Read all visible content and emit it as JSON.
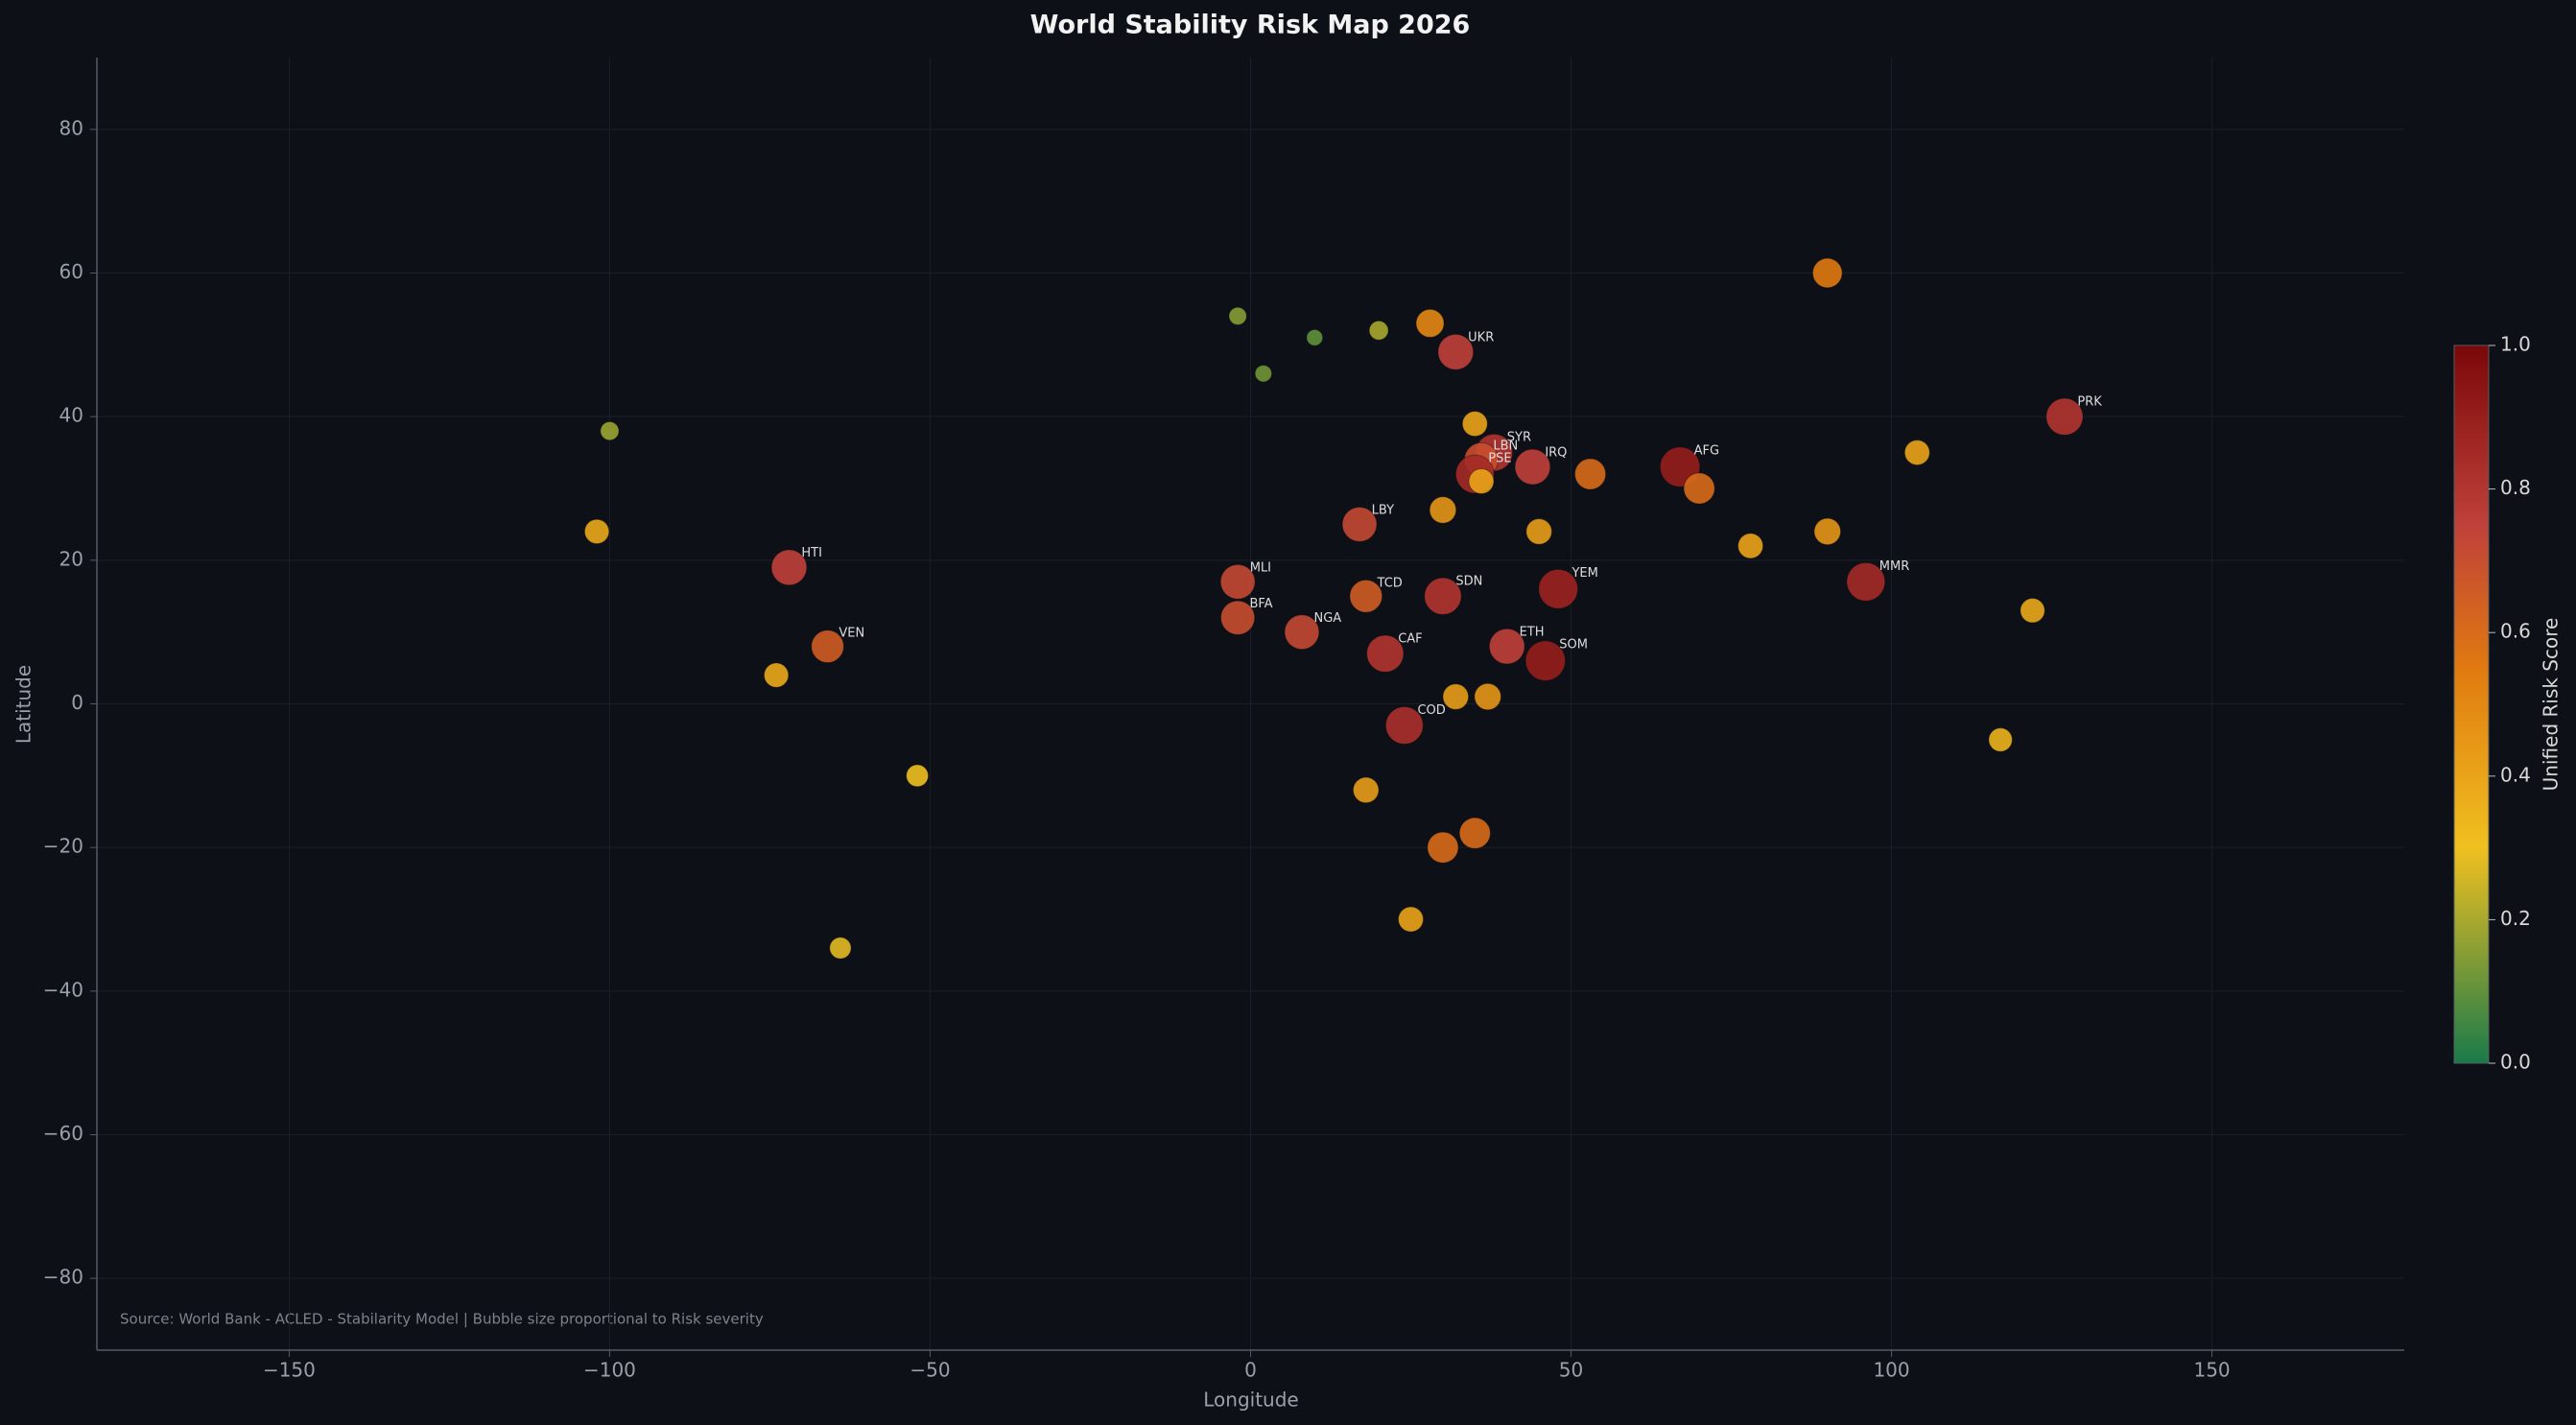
{
  "chart_data": {
    "type": "scatter",
    "title": "World Stability Risk Map 2026",
    "x_label": "Longitude",
    "y_label": "Latitude",
    "colorbar_label": "Unified Risk Score",
    "source": "Source: World Bank - ACLED - Stabilarity Model | Bubble size proportional to Risk severity",
    "x": [
      -2,
      10,
      2,
      20,
      28,
      32,
      -100,
      -102,
      -72,
      -66,
      -74,
      -52,
      -64,
      90,
      127,
      104,
      35,
      38,
      36,
      35,
      36,
      44,
      53,
      67,
      70,
      78,
      90,
      96,
      122,
      117,
      30,
      17,
      45,
      -2,
      -2,
      18,
      30,
      48,
      8,
      21,
      40,
      46,
      32,
      37,
      24,
      18,
      30,
      35,
      25
    ],
    "y": [
      54,
      51,
      46,
      52,
      53,
      49,
      38,
      24,
      19,
      8,
      4,
      -10,
      -34,
      60,
      40,
      35,
      39,
      35,
      34,
      32,
      31,
      33,
      32,
      33,
      30,
      22,
      24,
      17,
      13,
      -5,
      27,
      25,
      24,
      17,
      12,
      15,
      15,
      16,
      10,
      7,
      8,
      6,
      1,
      1,
      -3,
      -12,
      -20,
      -18,
      -30
    ],
    "values": [
      0.15,
      0.1,
      0.12,
      0.2,
      0.5,
      0.75,
      0.18,
      0.38,
      0.75,
      0.65,
      0.38,
      0.3,
      0.28,
      0.55,
      0.8,
      0.4,
      0.4,
      0.8,
      0.7,
      0.85,
      0.4,
      0.75,
      0.6,
      0.9,
      0.6,
      0.4,
      0.45,
      0.85,
      0.38,
      0.35,
      0.45,
      0.72,
      0.42,
      0.72,
      0.7,
      0.65,
      0.8,
      0.88,
      0.72,
      0.8,
      0.75,
      0.9,
      0.42,
      0.45,
      0.82,
      0.42,
      0.6,
      0.6,
      0.4
    ],
    "labels": [
      null,
      null,
      null,
      null,
      null,
      "UKR",
      null,
      null,
      "HTI",
      "VEN",
      null,
      null,
      null,
      null,
      "PRK",
      null,
      null,
      "SYR",
      "LBN",
      "PSE",
      null,
      "IRQ",
      null,
      "AFG",
      null,
      null,
      null,
      "MMR",
      null,
      null,
      null,
      "LBY",
      null,
      "MLI",
      "BFA",
      "TCD",
      "SDN",
      "YEM",
      "NGA",
      "CAF",
      "ETH",
      "SOM",
      null,
      null,
      "COD",
      null,
      null,
      null,
      null
    ],
    "xlim": [
      -180,
      180
    ],
    "ylim": [
      -90,
      90
    ],
    "xticks": [
      {
        "value": -150,
        "label": "−150"
      },
      {
        "value": -100,
        "label": "−100"
      },
      {
        "value": -50,
        "label": "−50"
      },
      0,
      50,
      100,
      150
    ],
    "yticks": [
      {
        "value": -80,
        "label": "−80"
      },
      {
        "value": -60,
        "label": "−60"
      },
      {
        "value": -40,
        "label": "−40"
      },
      {
        "value": -20,
        "label": "−20"
      },
      0,
      20,
      40,
      60,
      80
    ],
    "clim": [
      0,
      1
    ],
    "cticks": [
      {
        "value": 0,
        "label": "0.0"
      },
      0.2,
      0.4,
      0.6,
      0.8,
      {
        "value": 1,
        "label": "1.0"
      }
    ],
    "colormap": [
      {
        "value": 0,
        "color": "#1a7a4a"
      },
      {
        "value": 0.3,
        "color": "#f0c020"
      },
      {
        "value": 0.55,
        "color": "#e07a10"
      },
      {
        "value": 0.75,
        "color": "#c0403a"
      },
      {
        "value": 1,
        "color": "#7a0808"
      }
    ],
    "grid": true
  }
}
